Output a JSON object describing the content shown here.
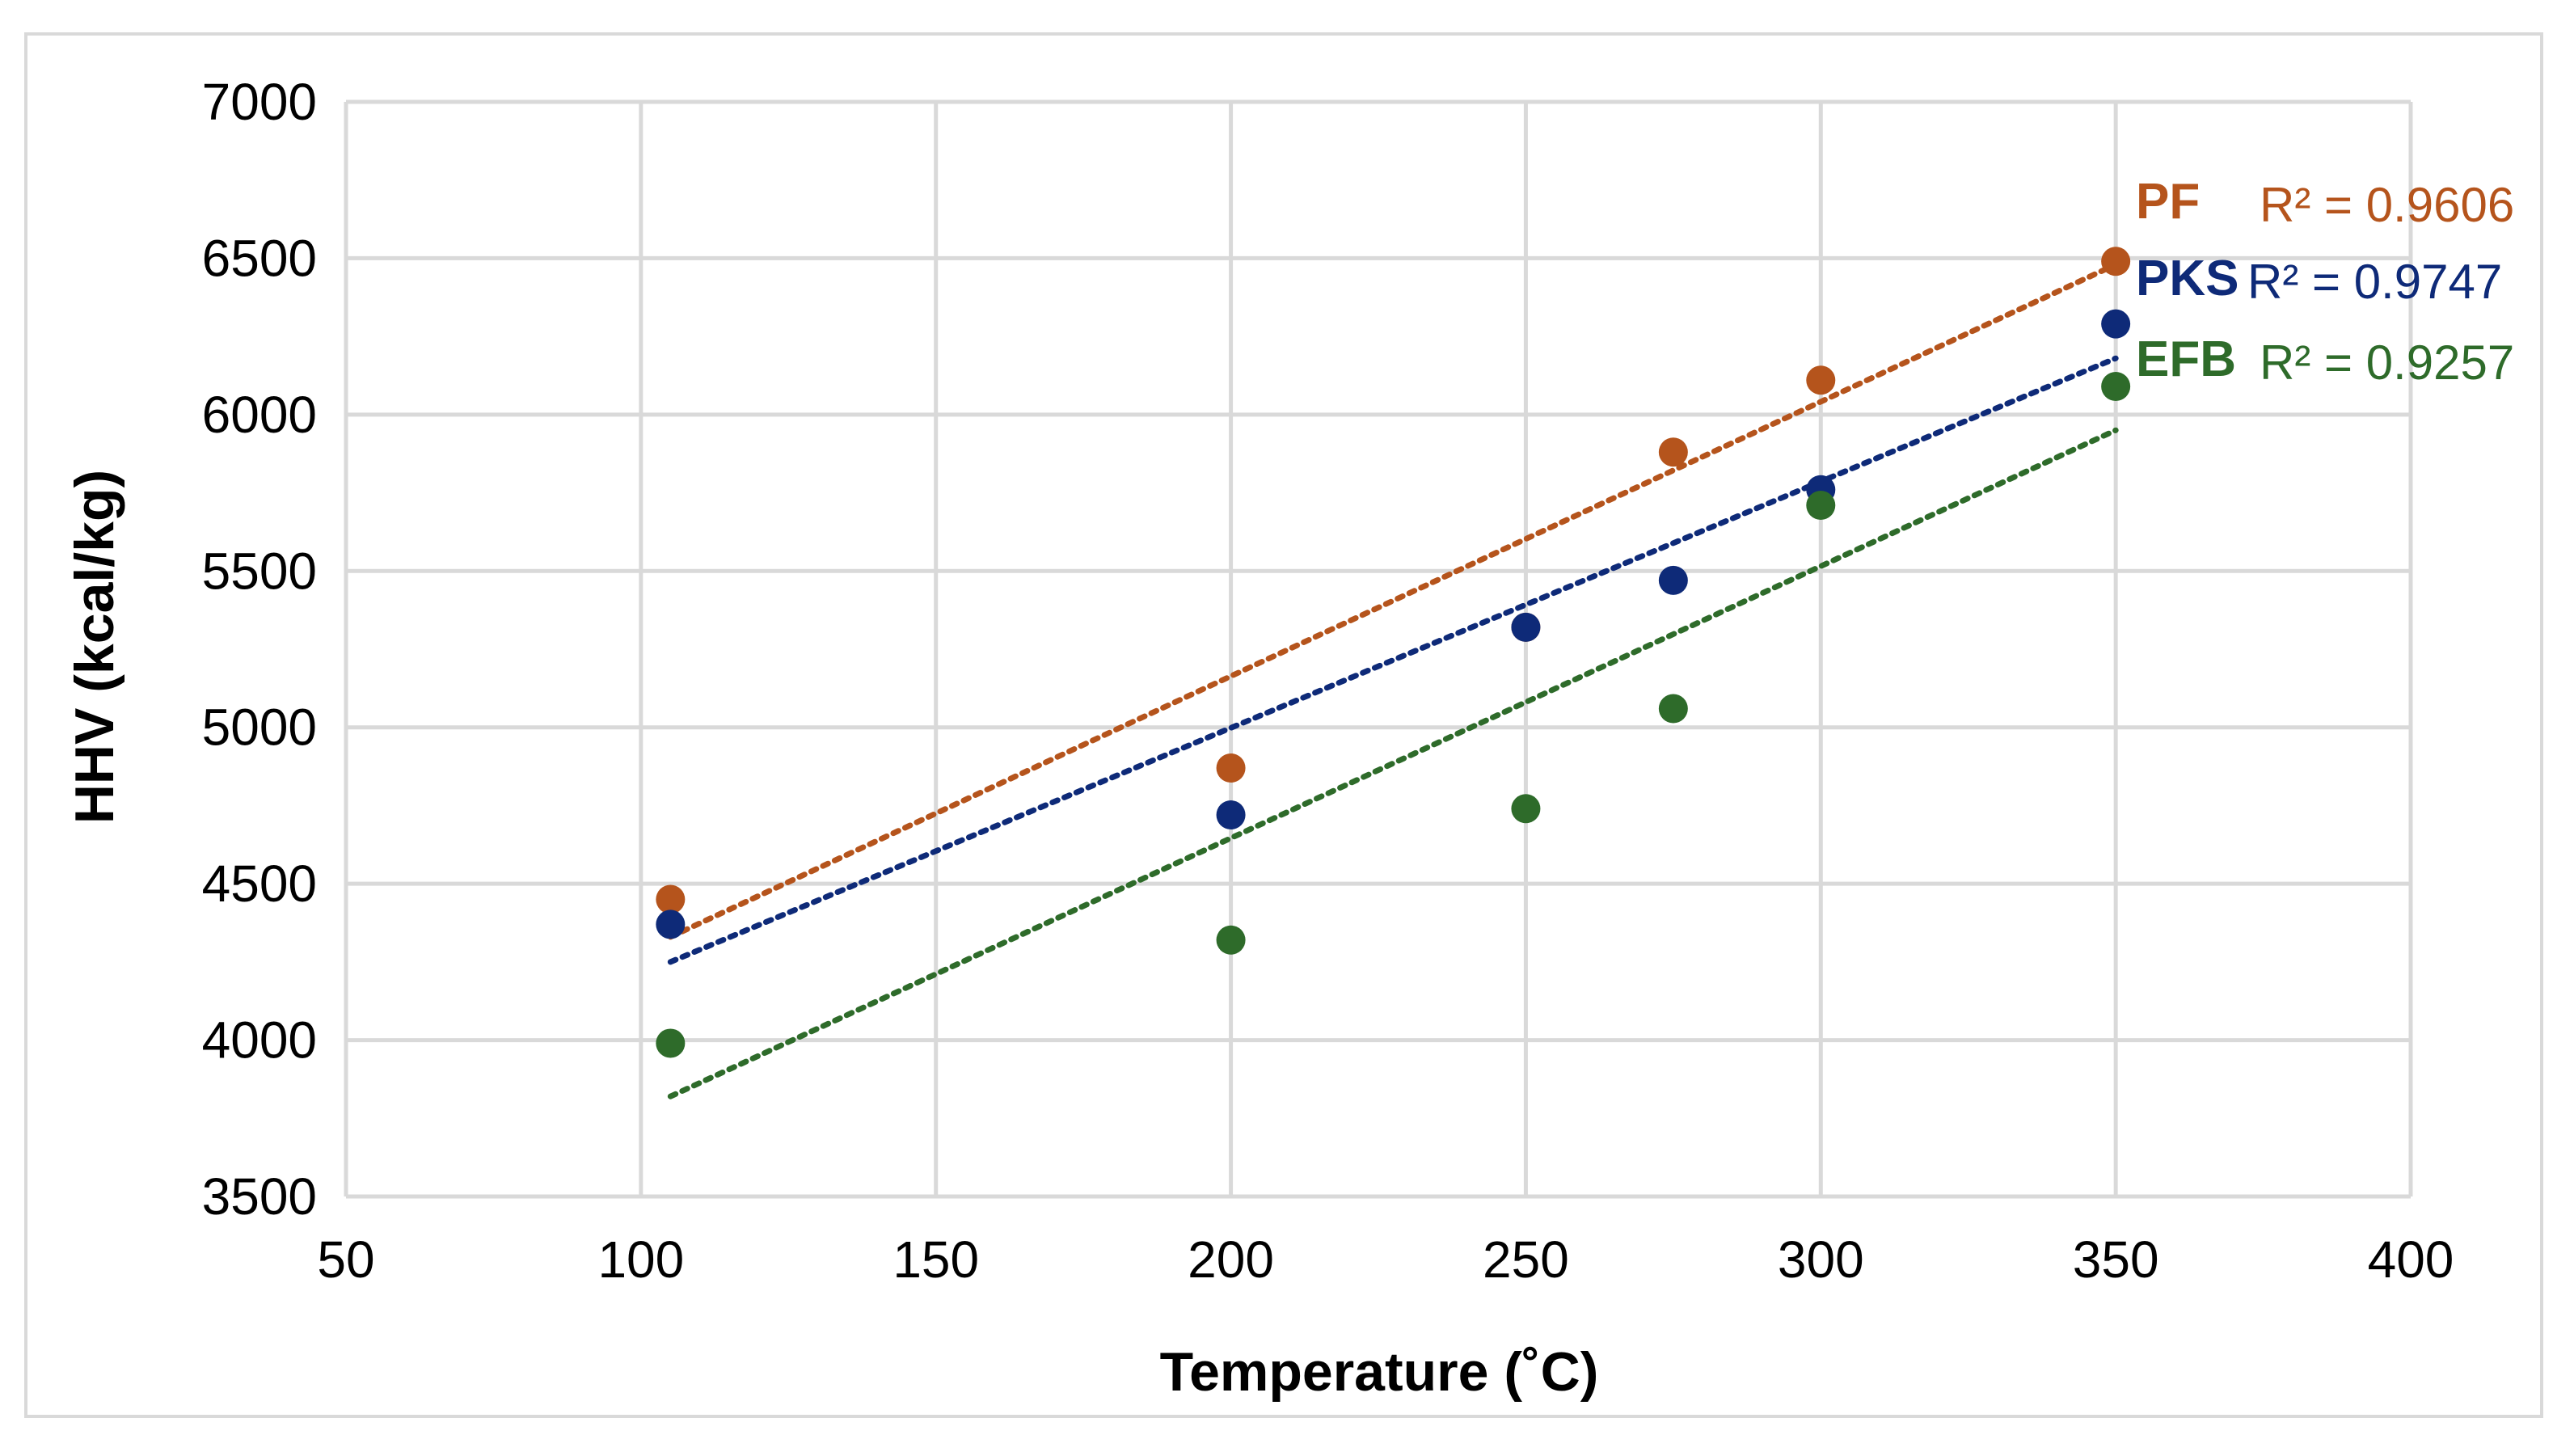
{
  "chart_data": {
    "type": "scatter",
    "title": "",
    "xlabel": "Temperature (˚C)",
    "ylabel": "HHV  (kcal/kg)",
    "xlim": [
      50,
      400
    ],
    "ylim": [
      3500,
      7000
    ],
    "xticks": [
      50,
      100,
      150,
      200,
      250,
      300,
      350,
      400
    ],
    "yticks": [
      3500,
      4000,
      4500,
      5000,
      5500,
      6000,
      6500,
      7000
    ],
    "grid": true,
    "trendline": "linear, dotted",
    "series": [
      {
        "name": "PF",
        "color": "#b5541c",
        "r2_label": "R² = 0.9606",
        "x": [
          105,
          200,
          250,
          275,
          300,
          350
        ],
        "y": [
          4450,
          4870,
          5320,
          5880,
          6110,
          6490
        ],
        "trend": {
          "x": [
            105,
            350
          ],
          "y": [
            4330,
            6480
          ]
        }
      },
      {
        "name": "PKS",
        "color": "#0e2a78",
        "r2_label": "R² = 0.9747",
        "x": [
          105,
          200,
          250,
          275,
          300,
          350
        ],
        "y": [
          4370,
          4720,
          5320,
          5470,
          5760,
          6290
        ],
        "trend": {
          "x": [
            105,
            350
          ],
          "y": [
            4250,
            6180
          ]
        }
      },
      {
        "name": "EFB",
        "color": "#2e6b2a",
        "r2_label": "R² = 0.9257",
        "x": [
          105,
          200,
          250,
          275,
          300,
          350
        ],
        "y": [
          3990,
          4320,
          4740,
          5060,
          5710,
          6090
        ],
        "trend": {
          "x": [
            105,
            350
          ],
          "y": [
            3820,
            5950
          ]
        }
      }
    ]
  }
}
